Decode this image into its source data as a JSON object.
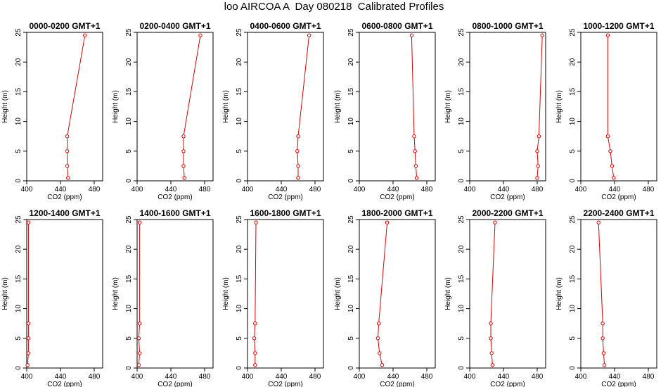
{
  "title": "loo AIRCOA A  Day 080218  Calibrated Profiles",
  "colors": {
    "series": "#dd0000",
    "axis": "#000000"
  },
  "chart_data": [
    {
      "type": "line",
      "title": "0000-0200 GMT+1",
      "xlabel": "CO2 (ppm)",
      "ylabel": "Height (m)",
      "xlim": [
        400,
        490
      ],
      "ylim": [
        0,
        25
      ],
      "xticks": [
        400,
        440,
        480
      ],
      "yticks": [
        0,
        5,
        10,
        15,
        20,
        25
      ],
      "grid": false,
      "x": [
        449,
        448,
        448,
        448,
        469
      ],
      "y": [
        0.5,
        2.5,
        5,
        7.5,
        24.5
      ]
    },
    {
      "type": "line",
      "title": "0200-0400 GMT+1",
      "xlabel": "CO2 (ppm)",
      "ylabel": "Height (m)",
      "xlim": [
        400,
        490
      ],
      "ylim": [
        0,
        25
      ],
      "xticks": [
        400,
        440,
        480
      ],
      "yticks": [
        0,
        5,
        10,
        15,
        20,
        25
      ],
      "grid": false,
      "x": [
        456,
        455,
        455,
        455,
        475
      ],
      "y": [
        0.5,
        2.5,
        5,
        7.5,
        24.5
      ]
    },
    {
      "type": "line",
      "title": "0400-0600 GMT+1",
      "xlabel": "CO2 (ppm)",
      "ylabel": "Height (m)",
      "xlim": [
        400,
        490
      ],
      "ylim": [
        0,
        25
      ],
      "xticks": [
        400,
        440,
        480
      ],
      "yticks": [
        0,
        5,
        10,
        15,
        20,
        25
      ],
      "grid": false,
      "x": [
        460,
        460,
        459,
        460,
        473
      ],
      "y": [
        0.5,
        2.5,
        5,
        7.5,
        24.5
      ]
    },
    {
      "type": "line",
      "title": "0600-0800 GMT+1",
      "xlabel": "CO2 (ppm)",
      "ylabel": "Height (m)",
      "xlim": [
        400,
        490
      ],
      "ylim": [
        0,
        25
      ],
      "xticks": [
        400,
        440,
        480
      ],
      "yticks": [
        0,
        5,
        10,
        15,
        20,
        25
      ],
      "grid": false,
      "x": [
        468,
        467,
        466,
        465,
        462
      ],
      "y": [
        0.5,
        2.5,
        5,
        7.5,
        24.5
      ]
    },
    {
      "type": "line",
      "title": "0800-1000 GMT+1",
      "xlabel": "CO2 (ppm)",
      "ylabel": "Height (m)",
      "xlim": [
        400,
        490
      ],
      "ylim": [
        0,
        25
      ],
      "xticks": [
        400,
        440,
        480
      ],
      "yticks": [
        0,
        5,
        10,
        15,
        20,
        25
      ],
      "grid": false,
      "x": [
        480,
        481,
        480,
        482,
        486
      ],
      "y": [
        0.5,
        2.5,
        5,
        7.5,
        24.5
      ]
    },
    {
      "type": "line",
      "title": "1000-1200 GMT+1",
      "xlabel": "CO2 (ppm)",
      "ylabel": "Height (m)",
      "xlim": [
        400,
        490
      ],
      "ylim": [
        0,
        25
      ],
      "xticks": [
        400,
        440,
        480
      ],
      "yticks": [
        0,
        5,
        10,
        15,
        20,
        25
      ],
      "grid": false,
      "x": [
        439,
        437,
        435,
        432,
        432
      ],
      "y": [
        0.5,
        2.5,
        5,
        7.5,
        24.5
      ]
    },
    {
      "type": "line",
      "title": "1200-1400 GMT+1",
      "xlabel": "CO2 (ppm)",
      "ylabel": "Height (m)",
      "xlim": [
        400,
        490
      ],
      "ylim": [
        0,
        25
      ],
      "xticks": [
        400,
        440,
        480
      ],
      "yticks": [
        0,
        5,
        10,
        15,
        20,
        25
      ],
      "grid": false,
      "x": [
        401,
        402,
        402,
        402,
        402
      ],
      "y": [
        0.5,
        2.5,
        5,
        7.5,
        24.5
      ]
    },
    {
      "type": "line",
      "title": "1400-1600 GMT+1",
      "xlabel": "CO2 (ppm)",
      "ylabel": "Height (m)",
      "xlim": [
        400,
        490
      ],
      "ylim": [
        0,
        25
      ],
      "xticks": [
        400,
        440,
        480
      ],
      "yticks": [
        0,
        5,
        10,
        15,
        20,
        25
      ],
      "grid": false,
      "x": [
        402,
        403,
        402,
        403,
        403
      ],
      "y": [
        0.5,
        2.5,
        5,
        7.5,
        24.5
      ]
    },
    {
      "type": "line",
      "title": "1600-1800 GMT+1",
      "xlabel": "CO2 (ppm)",
      "ylabel": "Height (m)",
      "xlim": [
        400,
        490
      ],
      "ylim": [
        0,
        25
      ],
      "xticks": [
        400,
        440,
        480
      ],
      "yticks": [
        0,
        5,
        10,
        15,
        20,
        25
      ],
      "grid": false,
      "x": [
        409,
        409,
        408,
        409,
        410
      ],
      "y": [
        0.5,
        2.5,
        5,
        7.5,
        24.5
      ]
    },
    {
      "type": "line",
      "title": "1800-2000 GMT+1",
      "xlabel": "CO2 (ppm)",
      "ylabel": "Height (m)",
      "xlim": [
        400,
        490
      ],
      "ylim": [
        0,
        25
      ],
      "xticks": [
        400,
        440,
        480
      ],
      "yticks": [
        0,
        5,
        10,
        15,
        20,
        25
      ],
      "grid": false,
      "x": [
        427,
        424,
        422,
        423,
        433
      ],
      "y": [
        0.5,
        2.5,
        5,
        7.5,
        24.5
      ]
    },
    {
      "type": "line",
      "title": "2000-2200 GMT+1",
      "xlabel": "CO2 (ppm)",
      "ylabel": "Height (m)",
      "xlim": [
        400,
        490
      ],
      "ylim": [
        0,
        25
      ],
      "xticks": [
        400,
        440,
        480
      ],
      "yticks": [
        0,
        5,
        10,
        15,
        20,
        25
      ],
      "grid": false,
      "x": [
        427,
        426,
        425,
        425,
        430
      ],
      "y": [
        0.5,
        2.5,
        5,
        7.5,
        24.5
      ]
    },
    {
      "type": "line",
      "title": "2200-2400 GMT+1",
      "xlabel": "CO2 (ppm)",
      "ylabel": "Height (m)",
      "xlim": [
        400,
        490
      ],
      "ylim": [
        0,
        25
      ],
      "xticks": [
        400,
        440,
        480
      ],
      "yticks": [
        0,
        5,
        10,
        15,
        20,
        25
      ],
      "grid": false,
      "x": [
        428,
        427,
        426,
        426,
        421
      ],
      "y": [
        0.5,
        2.5,
        5,
        7.5,
        24.5
      ]
    }
  ]
}
